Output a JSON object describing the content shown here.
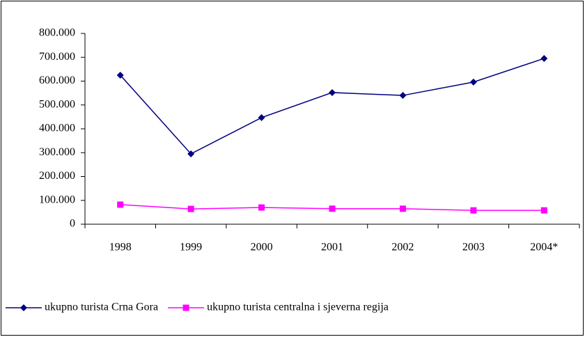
{
  "chart_data": {
    "type": "line",
    "categories": [
      "1998",
      "1999",
      "2000",
      "2001",
      "2002",
      "2003",
      "2004*"
    ],
    "series": [
      {
        "name": "ukupno turista Crna Gora",
        "color": "#000080",
        "marker": "diamond",
        "values": [
          625000,
          295000,
          447000,
          552000,
          540000,
          596000,
          695000
        ]
      },
      {
        "name": "ukupno turista centralna i sjeverna regija",
        "color": "#ff00ff",
        "marker": "square",
        "values": [
          82000,
          64000,
          70000,
          65000,
          65000,
          58000,
          58000
        ]
      }
    ],
    "ylim": [
      0,
      800000
    ],
    "yticks": [
      0,
      {
        "value": 100000,
        "label": "100.000"
      },
      {
        "value": 200000,
        "label": "200.000"
      },
      {
        "value": 300000,
        "label": "300.000"
      },
      {
        "value": 400000,
        "label": "400.000"
      },
      {
        "value": 500000,
        "label": "500.000"
      },
      {
        "value": 600000,
        "label": "600.000"
      },
      {
        "value": 700000,
        "label": "700.000"
      },
      {
        "value": 800000,
        "label": "800.000"
      }
    ],
    "grid": false,
    "legend": "bottom"
  }
}
